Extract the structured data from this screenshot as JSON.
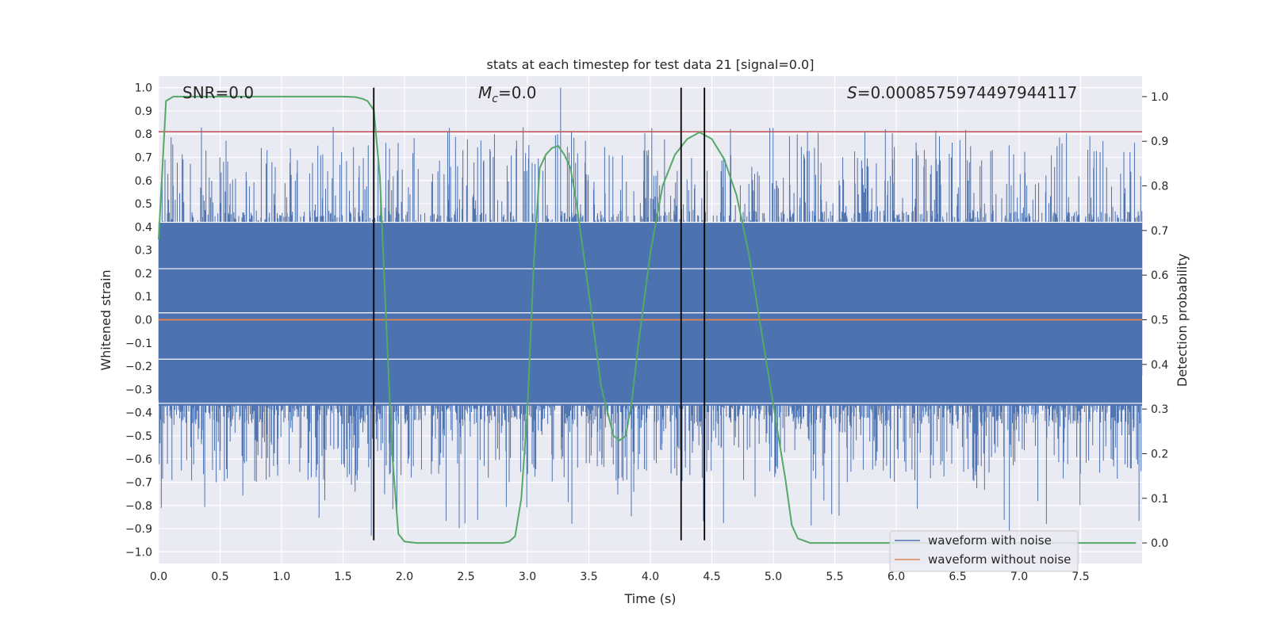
{
  "chart_data": {
    "type": "line",
    "title": "stats at each timestep for test data 21 [signal=0.0]",
    "xlabel": "Time (s)",
    "ylabel_left": "Whitened strain",
    "ylabel_right": "Detection probability",
    "xlim": [
      0.0,
      8.0
    ],
    "ylim_left": [
      -1.05,
      1.05
    ],
    "ylim_right": [
      -0.046,
      1.046
    ],
    "x_ticks": [
      "0.0",
      "0.5",
      "1.0",
      "1.5",
      "2.0",
      "2.5",
      "3.0",
      "3.5",
      "4.0",
      "4.5",
      "5.0",
      "5.5",
      "6.0",
      "6.5",
      "7.0",
      "7.5"
    ],
    "y_ticks_left": [
      "1.0",
      "0.9",
      "0.8",
      "0.7",
      "0.6",
      "0.5",
      "0.4",
      "0.3",
      "0.2",
      "0.1",
      "0.0",
      "−0.1",
      "−0.2",
      "−0.3",
      "−0.4",
      "−0.5",
      "−0.6",
      "−0.7",
      "−0.8",
      "−0.9",
      "−1.0"
    ],
    "y_ticks_right": [
      "1.0",
      "0.9",
      "0.8",
      "0.7",
      "0.6",
      "0.5",
      "0.4",
      "0.3",
      "0.2",
      "0.1",
      "0.0"
    ],
    "annotations": {
      "snr": "SNR=0.0",
      "mc_symbol": "M",
      "mc_sub": "c",
      "mc_value": "=0.0",
      "s_symbol": "S",
      "s_value": "=0.0008575974497944117"
    },
    "grid": true,
    "legend_position": "lower-right",
    "series": [
      {
        "name": "waveform with noise",
        "color": "#4c72b0",
        "axis": "left",
        "kind": "dense-noise",
        "bulk_range": [
          -0.37,
          0.42
        ],
        "spike_max": 1.0,
        "spike_min": -0.93
      },
      {
        "name": "waveform without noise",
        "color": "#dd8452",
        "axis": "left",
        "constant": 0.0
      },
      {
        "color": "#55a868",
        "axis": "right",
        "x": [
          0.0,
          0.06,
          0.12,
          0.2,
          0.4,
          0.8,
          1.2,
          1.5,
          1.6,
          1.66,
          1.7,
          1.75,
          1.8,
          1.85,
          1.9,
          1.95,
          2.0,
          2.1,
          2.5,
          2.8,
          2.85,
          2.9,
          2.95,
          3.0,
          3.05,
          3.1,
          3.15,
          3.2,
          3.25,
          3.3,
          3.35,
          3.4,
          3.5,
          3.6,
          3.7,
          3.75,
          3.8,
          3.85,
          3.9,
          4.0,
          4.1,
          4.2,
          4.3,
          4.4,
          4.5,
          4.6,
          4.7,
          4.8,
          4.9,
          5.0,
          5.1,
          5.15,
          5.2,
          5.3,
          7.5,
          7.95
        ],
        "y": [
          0.68,
          0.99,
          1.0,
          1.0,
          1.0,
          1.0,
          1.0,
          1.0,
          0.999,
          0.995,
          0.99,
          0.97,
          0.82,
          0.5,
          0.2,
          0.02,
          0.003,
          0.0,
          0.0,
          0.0,
          0.003,
          0.015,
          0.1,
          0.3,
          0.62,
          0.84,
          0.87,
          0.885,
          0.89,
          0.87,
          0.84,
          0.76,
          0.56,
          0.35,
          0.24,
          0.23,
          0.24,
          0.32,
          0.44,
          0.65,
          0.8,
          0.87,
          0.905,
          0.92,
          0.905,
          0.86,
          0.78,
          0.65,
          0.48,
          0.31,
          0.14,
          0.04,
          0.01,
          0.0,
          0.0,
          0.0
        ]
      },
      {
        "color": "#c44e52",
        "axis": "left",
        "constant": 0.81
      }
    ],
    "vertical_lines": [
      1.75,
      4.25,
      4.44
    ],
    "vertical_line_range": [
      -0.95,
      1.0
    ],
    "vertical_line_color": "#000000"
  }
}
